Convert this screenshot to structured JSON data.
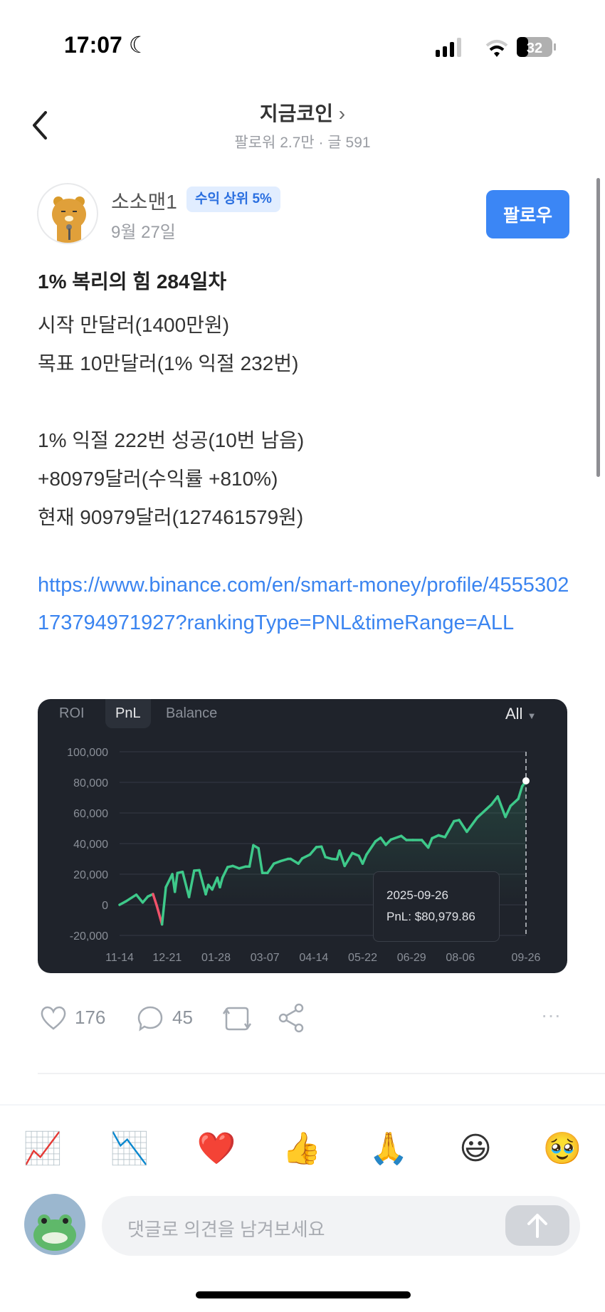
{
  "status_bar": {
    "time": "17:07",
    "battery": "32",
    "icons": [
      "moon-icon",
      "signal-icon",
      "wifi-icon",
      "battery-icon"
    ]
  },
  "header": {
    "title": "지금코인",
    "chevron": "›",
    "subtitle": "팔로워 2.7만 · 글 591"
  },
  "post": {
    "author": "소소맨1",
    "badge": "수익 상위 5%",
    "date": "9월 27일",
    "follow_label": "팔로우",
    "title": "1% 복리의 힘 284일차",
    "lines": [
      "시작 만달러(1400만원)",
      "목표 10만달러(1% 익절 232번)",
      "",
      "1% 익절 222번 성공(10번 남음)",
      "+80979달러(수익률 +810%)",
      "현재 90979달러(127461579원)"
    ],
    "link": "https://www.binance.com/en/smart-money/profile/4555302173794971927?rankingType=PNL&timeRange=ALL"
  },
  "chart_tabs": {
    "tabs": [
      "ROI",
      "PnL",
      "Balance"
    ],
    "active": "PnL",
    "range": "All"
  },
  "chart_data": {
    "type": "line",
    "title": "",
    "xlabel": "",
    "ylabel": "",
    "ylim": [
      -20000,
      100000
    ],
    "grid": true,
    "yticks": [
      "100,000",
      "80,000",
      "60,000",
      "40,000",
      "20,000",
      "0",
      "-20,000"
    ],
    "ytick_values": [
      100000,
      80000,
      60000,
      40000,
      20000,
      0,
      -20000
    ],
    "xticks": [
      "11-14",
      "12-21",
      "01-28",
      "03-07",
      "04-14",
      "05-22",
      "06-29",
      "08-06",
      "09-26"
    ],
    "xtick_dates": [
      "2024-11-14",
      "2024-12-21",
      "2025-01-28",
      "2025-03-07",
      "2025-04-14",
      "2025-05-22",
      "2025-06-29",
      "2025-08-06",
      "2025-09-26"
    ],
    "colors": {
      "positive": "#3ec98a",
      "negative": "#f0526a",
      "background": "#1f232b"
    },
    "x": [
      "2024-11-14",
      "2024-11-19",
      "2024-11-27",
      "2024-12-02",
      "2024-12-06",
      "2024-12-10",
      "2024-12-13",
      "2024-12-17",
      "2024-12-20",
      "2024-12-25",
      "2024-12-27",
      "2024-12-29",
      "2025-01-02",
      "2025-01-07",
      "2025-01-11",
      "2025-01-15",
      "2025-01-20",
      "2025-01-22",
      "2025-01-25",
      "2025-01-29",
      "2025-01-31",
      "2025-02-02",
      "2025-02-06",
      "2025-02-10",
      "2025-02-15",
      "2025-02-20",
      "2025-02-23",
      "2025-02-26",
      "2025-03-02",
      "2025-03-05",
      "2025-03-09",
      "2025-03-14",
      "2025-03-19",
      "2025-03-25",
      "2025-03-27",
      "2025-04-02",
      "2025-04-05",
      "2025-04-11",
      "2025-04-16",
      "2025-04-20",
      "2025-04-23",
      "2025-04-28",
      "2025-05-02",
      "2025-05-04",
      "2025-05-08",
      "2025-05-14",
      "2025-05-19",
      "2025-05-22",
      "2025-05-25",
      "2025-06-01",
      "2025-06-05",
      "2025-06-09",
      "2025-06-13",
      "2025-06-21",
      "2025-06-25",
      "2025-06-30",
      "2025-07-07",
      "2025-07-12",
      "2025-07-15",
      "2025-07-20",
      "2025-07-25",
      "2025-08-01",
      "2025-08-05",
      "2025-08-11",
      "2025-08-19",
      "2025-08-26",
      "2025-08-30",
      "2025-09-04",
      "2025-09-10",
      "2025-09-14",
      "2025-09-20",
      "2025-09-23",
      "2025-09-26"
    ],
    "y": [
      0,
      2300,
      6600,
      1500,
      5400,
      7000,
      -800,
      -12800,
      11500,
      20000,
      8500,
      20800,
      21500,
      5100,
      22300,
      22600,
      6900,
      13000,
      10000,
      17700,
      11500,
      17700,
      24600,
      25400,
      23800,
      25000,
      25000,
      38900,
      36900,
      20800,
      20800,
      26900,
      28500,
      30000,
      30000,
      26900,
      30300,
      32800,
      37700,
      38000,
      31200,
      30000,
      29700,
      35400,
      25400,
      33800,
      32000,
      26900,
      32800,
      41500,
      43800,
      39200,
      42600,
      45000,
      42300,
      42300,
      42300,
      37400,
      43500,
      45400,
      44200,
      54600,
      55400,
      47700,
      56900,
      62300,
      65400,
      70800,
      57400,
      64600,
      69200,
      77400,
      80979.86
    ],
    "tooltip": {
      "date": "2025-09-26",
      "label": "PnL: $80,979.86"
    }
  },
  "actions": {
    "likes": "176",
    "comments": "45",
    "more": "···"
  },
  "reactions": [
    "📈",
    "📉",
    "❤️",
    "👍",
    "🙏",
    "😃",
    "🥹"
  ],
  "reaction_names": [
    "chart-up",
    "chart-down",
    "heart",
    "thumbs-up",
    "pray",
    "smile",
    "teary"
  ],
  "comment": {
    "placeholder": "댓글로 의견을 남겨보세요"
  }
}
